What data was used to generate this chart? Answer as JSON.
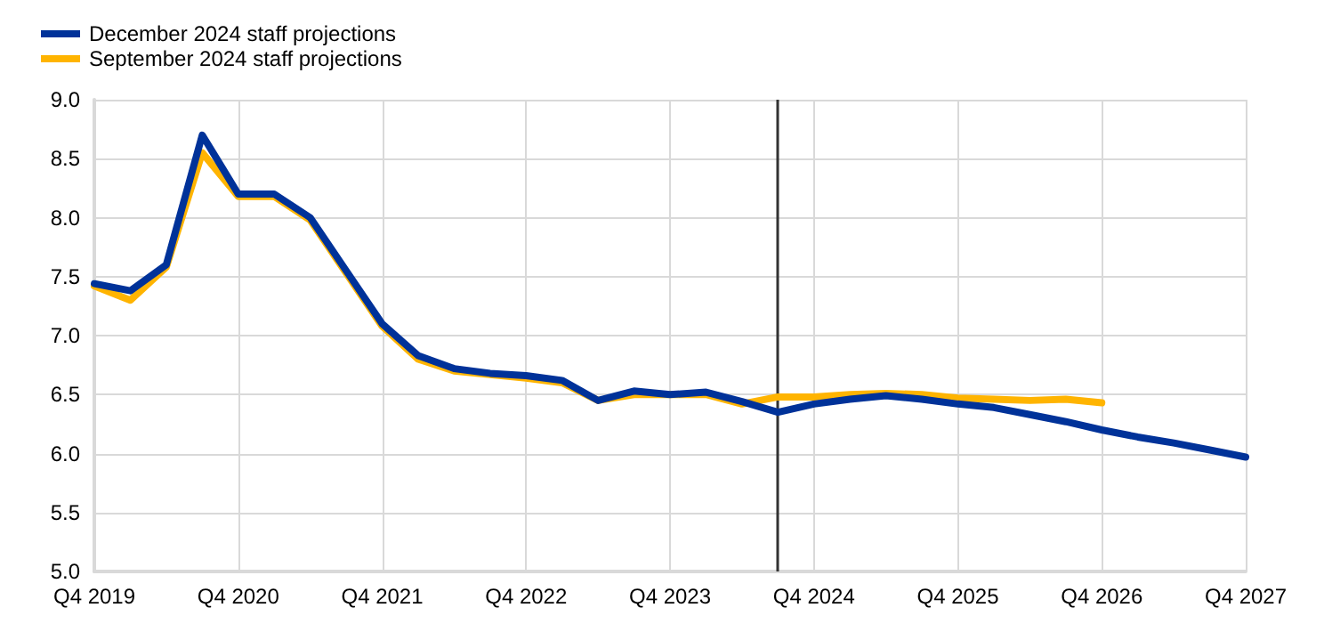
{
  "chart_data": {
    "type": "line",
    "categories": [
      "Q4 2019",
      null,
      null,
      null,
      "Q4 2020",
      null,
      null,
      null,
      "Q4 2021",
      null,
      null,
      null,
      "Q4 2022",
      null,
      null,
      null,
      "Q4 2023",
      null,
      null,
      null,
      "Q4 2024",
      null,
      null,
      null,
      "Q4 2025",
      null,
      null,
      null,
      "Q4 2026",
      null,
      null,
      null,
      "Q4 2027"
    ],
    "series": [
      {
        "name": "December 2024 staff projections",
        "color": "#003299",
        "values": [
          7.44,
          7.38,
          7.6,
          8.7,
          8.2,
          8.2,
          8.0,
          7.55,
          7.1,
          6.83,
          6.72,
          6.68,
          6.66,
          6.62,
          6.45,
          6.53,
          6.5,
          6.52,
          6.44,
          6.35,
          6.42,
          6.46,
          6.49,
          6.46,
          6.42,
          6.39,
          6.33,
          6.27,
          6.2,
          6.14,
          6.09,
          6.03,
          5.97
        ]
      },
      {
        "name": "September 2024 staff projections",
        "color": "#ffb400",
        "values": [
          7.42,
          7.3,
          7.58,
          8.55,
          8.18,
          8.18,
          7.98,
          7.53,
          7.08,
          6.8,
          6.7,
          6.67,
          6.64,
          6.6,
          6.45,
          6.5,
          6.5,
          6.5,
          6.42,
          6.48,
          6.48,
          6.5,
          6.51,
          6.5,
          6.47,
          6.46,
          6.45,
          6.46,
          6.43,
          null,
          null,
          null,
          null
        ]
      }
    ],
    "ylim": [
      5.0,
      9.0
    ],
    "yticks": [
      {
        "value": 5.0,
        "label": "5.0"
      },
      {
        "value": 5.5,
        "label": "5.5"
      },
      {
        "value": 6.0,
        "label": "6.0"
      },
      {
        "value": 6.5,
        "label": "6.5"
      },
      {
        "value": 7.0,
        "label": "7.0"
      },
      {
        "value": 7.5,
        "label": "7.5"
      },
      {
        "value": 8.0,
        "label": "8.0"
      },
      {
        "value": 8.5,
        "label": "8.5"
      },
      {
        "value": 9.0,
        "label": "9.0"
      }
    ],
    "grid": true,
    "legend": "top left",
    "marker": "none",
    "line_style": "solid"
  }
}
